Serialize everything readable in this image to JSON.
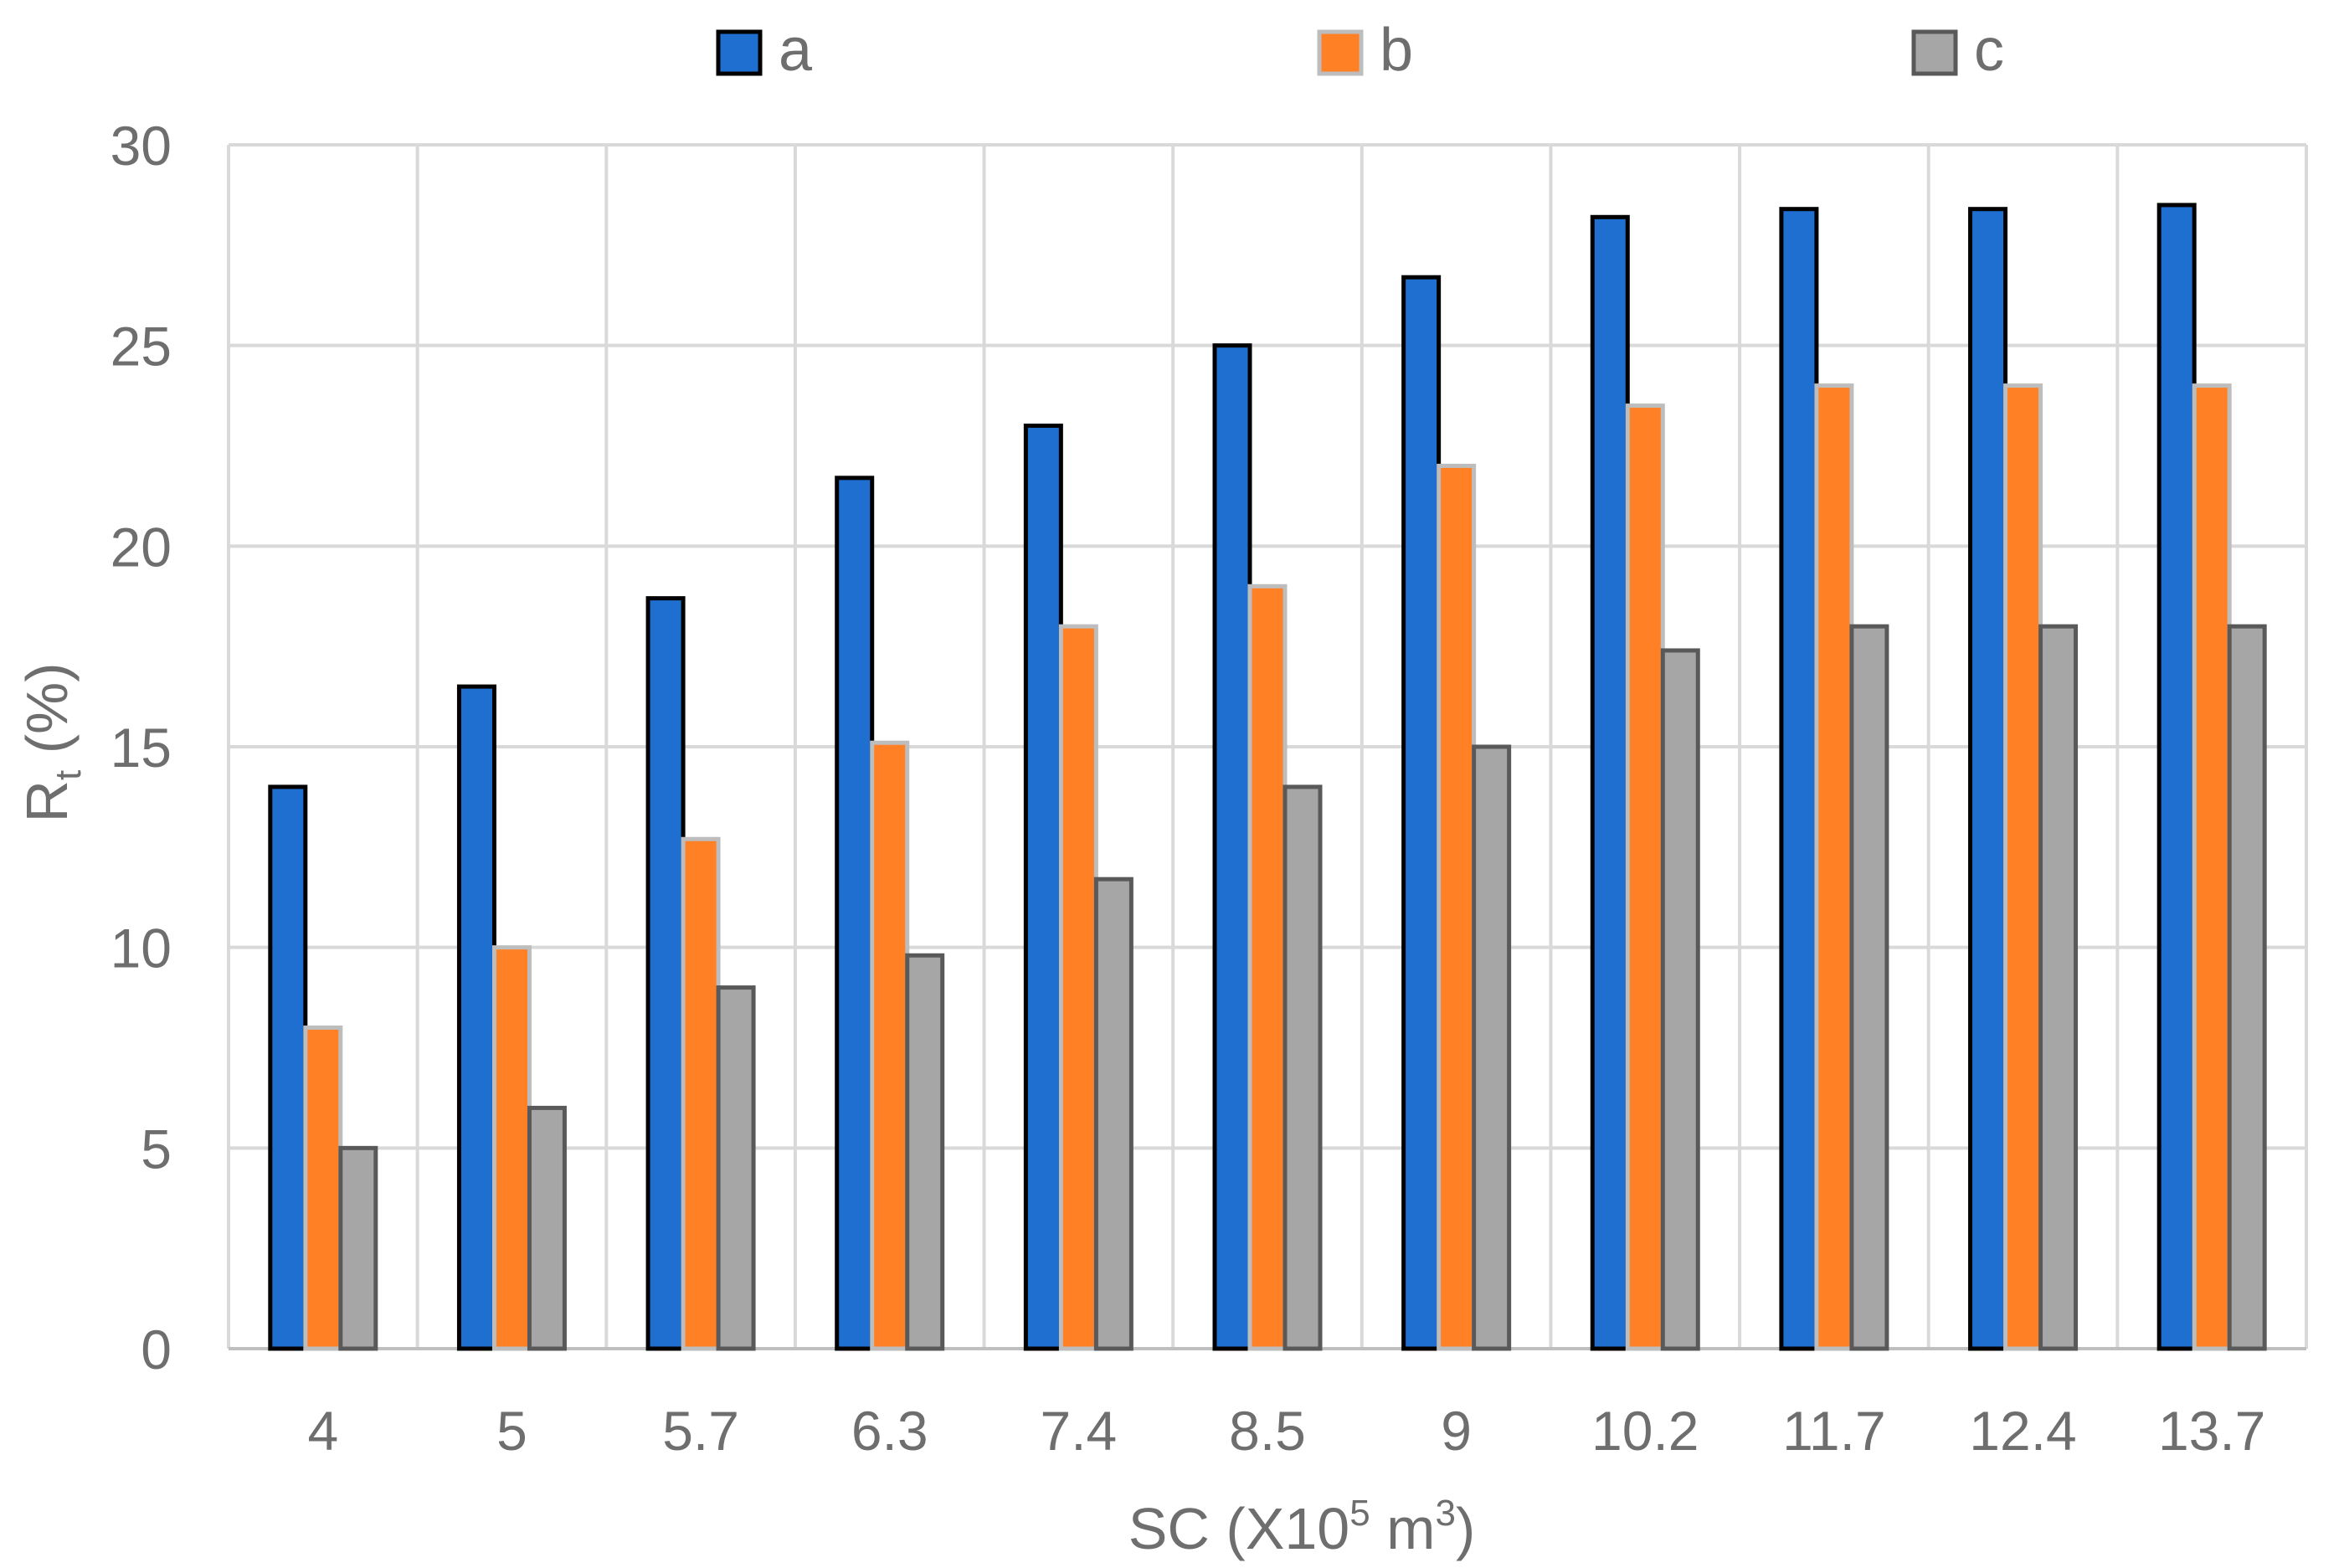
{
  "chart_data": {
    "type": "bar",
    "title": "",
    "xlabel": "SC (X10",
    "xlabel_sup": "5",
    "xlabel_mid": " m",
    "xlabel_sup2": "3",
    "xlabel_end": ")",
    "ylabel": "R",
    "ylabel_sub": "t",
    "ylabel_end": " (%)",
    "ylim": [
      0,
      30
    ],
    "yticks": [
      "0",
      "5",
      "10",
      "15",
      "20",
      "25",
      "30"
    ],
    "categories": [
      "4",
      "5",
      "5.7",
      "6.3",
      "7.4",
      "8.5",
      "9",
      "10.2",
      "11.7",
      "12.4",
      "13.7"
    ],
    "grid": true,
    "legend_position": "top",
    "series": [
      {
        "name": "a",
        "color": "#1f6fd1",
        "stroke": "#000000",
        "values": [
          14,
          16.5,
          18.7,
          21.7,
          23,
          25,
          26.7,
          28.2,
          28.4,
          28.4,
          28.5
        ]
      },
      {
        "name": "b",
        "color": "#ff8025",
        "stroke": "#bdbdbd",
        "values": [
          8,
          10,
          12.7,
          15.1,
          18,
          19,
          22,
          23.5,
          24,
          24,
          24
        ]
      },
      {
        "name": "c",
        "color": "#a6a6a6",
        "stroke": "#595959",
        "values": [
          5,
          6,
          9,
          9.8,
          11.7,
          14,
          15,
          17.4,
          18,
          18,
          18
        ]
      }
    ]
  }
}
